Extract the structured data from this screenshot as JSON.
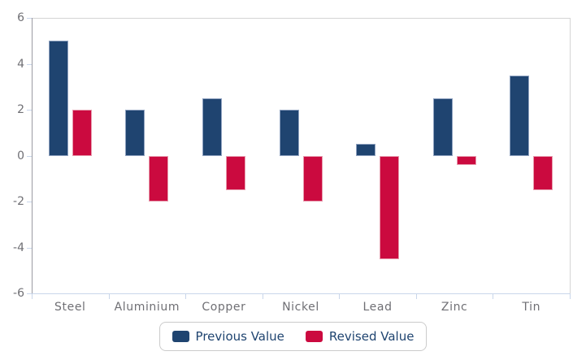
{
  "chart_data": {
    "type": "bar",
    "title": "",
    "xlabel": "",
    "ylabel": "",
    "categories": [
      "Steel",
      "Aluminium",
      "Copper",
      "Nickel",
      "Lead",
      "Zinc",
      "Tin"
    ],
    "series": [
      {
        "name": "Previous Value",
        "color": "#1F4470",
        "border_color": "#8FA2C0",
        "values": [
          5,
          2,
          2.5,
          2,
          0.5,
          2.5,
          3.5
        ]
      },
      {
        "name": "Revised Value",
        "color": "#CB0A3F",
        "border_color": "#E79BAD",
        "values": [
          2,
          -2,
          -1.5,
          -2,
          -4.5,
          -0.4,
          -1.5
        ]
      }
    ],
    "ylim": [
      -6,
      6
    ],
    "y_ticks": [
      6,
      4,
      2,
      0,
      -2,
      -4,
      -6
    ],
    "grid": false,
    "legend_position": "bottom-center",
    "colors": {
      "y_axis_line": "#9A9AA2",
      "x_axis_line": "#C9D6EA",
      "tick_mark": "#C9D6EA",
      "plot_border": "#D4D4D4",
      "tick_label_text": "#6F6F74",
      "legend_text": "#1F4470",
      "legend_border": "#CBCBCB",
      "background": "#FFFFFF"
    }
  }
}
